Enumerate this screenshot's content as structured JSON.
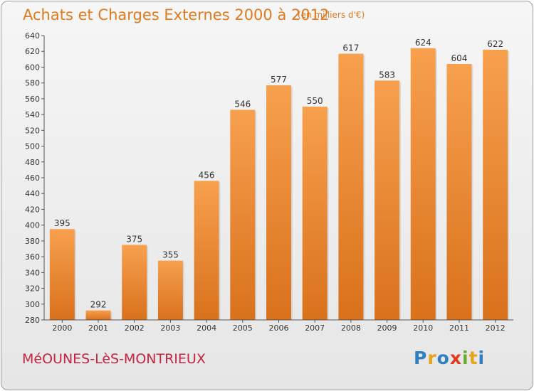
{
  "header": {
    "title": "Achats et Charges Externes 2000 à 2012",
    "unit": "(en milliers d'€)"
  },
  "footer": {
    "location": "MéOUNES-LèS-MONTRIEUX",
    "brand_letters": [
      "P",
      "r",
      "o",
      "x",
      "i",
      "t",
      "i"
    ],
    "brand_colors": [
      "#2f7fc1",
      "#e8a21c",
      "#2f7fc1",
      "#e03a1f",
      "#6aaa2a",
      "#e8a21c",
      "#2f7fc1"
    ]
  },
  "chart_data": {
    "type": "bar",
    "title": "Achats et Charges Externes 2000 à 2012",
    "categories": [
      "2000",
      "2001",
      "2002",
      "2003",
      "2004",
      "2005",
      "2006",
      "2007",
      "2008",
      "2009",
      "2010",
      "2011",
      "2012"
    ],
    "values": [
      395,
      292,
      375,
      355,
      456,
      546,
      577,
      550,
      617,
      583,
      624,
      604,
      622
    ],
    "ylim": [
      280,
      640
    ],
    "yticks": [
      280,
      300,
      320,
      340,
      360,
      380,
      400,
      420,
      440,
      460,
      480,
      500,
      520,
      540,
      560,
      580,
      600,
      620,
      640
    ],
    "grid": false,
    "bar_color": "#f0933a"
  }
}
